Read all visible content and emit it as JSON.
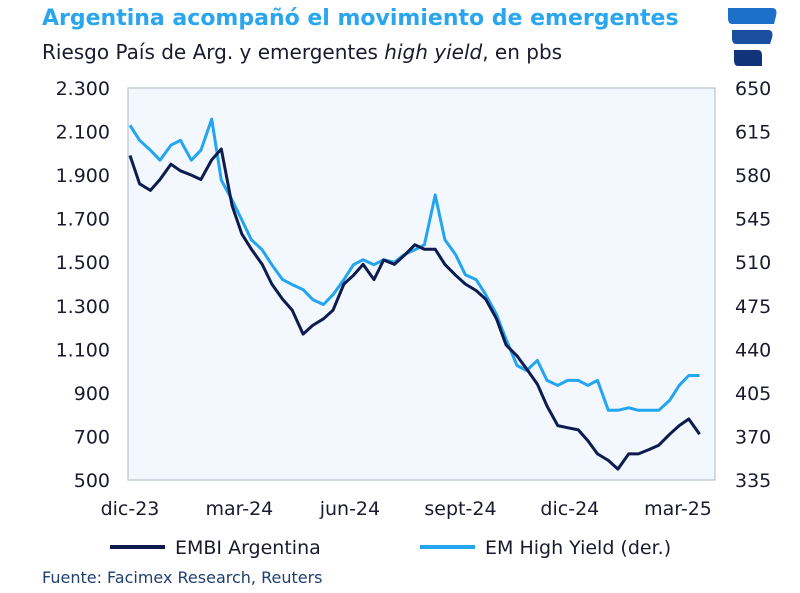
{
  "title": "Argentina acompañó el movimiento de emergentes",
  "subtitle_prefix": "Riesgo País de Arg. y emergentes ",
  "subtitle_italic": "high yield",
  "subtitle_suffix": ", en pbs",
  "source": "Fuente: Facimex Research, Reuters",
  "colors": {
    "title": "#2aa6ef",
    "embi": "#0d1b4f",
    "hy": "#23a5f0",
    "plot_bg": "#f2f8fe"
  },
  "chart_data": {
    "type": "line",
    "xlabel": "",
    "ylabel": "",
    "x_ticks": [
      {
        "label": "dic-23",
        "date": "2023-12-01"
      },
      {
        "label": "mar-24",
        "date": "2024-03-01"
      },
      {
        "label": "jun-24",
        "date": "2024-06-01"
      },
      {
        "label": "sept-24",
        "date": "2024-09-01"
      },
      {
        "label": "dic-24",
        "date": "2024-12-01"
      },
      {
        "label": "mar-25",
        "date": "2025-03-01"
      }
    ],
    "y_left": {
      "range": [
        500,
        2300
      ],
      "ticks": [
        "2.300",
        "2.100",
        "1.900",
        "1.700",
        "1.500",
        "1.300",
        "1.100",
        "900",
        "700",
        "500"
      ]
    },
    "y_right": {
      "range": [
        335,
        650
      ],
      "ticks": [
        "650",
        "615",
        "580",
        "545",
        "510",
        "475",
        "440",
        "405",
        "370",
        "335"
      ]
    },
    "grid": false,
    "legend_placement": "bottom",
    "x": [
      "2023-12-01",
      "2023-12-09",
      "2023-12-18",
      "2023-12-26",
      "2024-01-04",
      "2024-01-12",
      "2024-01-21",
      "2024-01-29",
      "2024-02-07",
      "2024-02-15",
      "2024-02-24",
      "2024-03-03",
      "2024-03-11",
      "2024-03-20",
      "2024-03-28",
      "2024-04-06",
      "2024-04-14",
      "2024-04-23",
      "2024-05-01",
      "2024-05-10",
      "2024-05-18",
      "2024-05-27",
      "2024-06-04",
      "2024-06-12",
      "2024-06-21",
      "2024-06-29",
      "2024-07-08",
      "2024-07-16",
      "2024-07-25",
      "2024-08-02",
      "2024-08-11",
      "2024-08-19",
      "2024-08-28",
      "2024-09-05",
      "2024-09-14",
      "2024-09-22",
      "2024-10-01",
      "2024-10-09",
      "2024-10-18",
      "2024-10-26",
      "2024-11-04",
      "2024-11-12",
      "2024-11-21",
      "2024-11-29",
      "2024-12-08",
      "2024-12-16",
      "2024-12-24",
      "2025-01-02",
      "2025-01-10",
      "2025-01-19",
      "2025-01-27",
      "2025-02-05",
      "2025-02-13",
      "2025-02-22",
      "2025-03-02",
      "2025-03-10",
      "2025-03-19"
    ],
    "series": [
      {
        "name": "EMBI Argentina",
        "axis": "left",
        "color": "#0d1b4f",
        "values": [
          1990,
          1860,
          1830,
          1880,
          1950,
          1920,
          1900,
          1880,
          1970,
          2020,
          1760,
          1630,
          1560,
          1490,
          1400,
          1330,
          1280,
          1170,
          1210,
          1240,
          1280,
          1400,
          1440,
          1490,
          1420,
          1510,
          1490,
          1530,
          1580,
          1560,
          1560,
          1490,
          1440,
          1400,
          1370,
          1330,
          1240,
          1120,
          1070,
          1010,
          940,
          840,
          750,
          740,
          730,
          680,
          620,
          590,
          550,
          620,
          620,
          640,
          660,
          710,
          750,
          780,
          710
        ]
      },
      {
        "name": "EM High Yield (der.)",
        "axis": "right",
        "color": "#23a5f0",
        "values": [
          620,
          608,
          600,
          592,
          604,
          608,
          592,
          600,
          625,
          576,
          560,
          544,
          528,
          520,
          508,
          496,
          492,
          488,
          480,
          476,
          484,
          496,
          508,
          512,
          508,
          512,
          510,
          516,
          520,
          524,
          564,
          528,
          516,
          500,
          496,
          484,
          468,
          448,
          427,
          423,
          431,
          415,
          411,
          415,
          415,
          411,
          415,
          391,
          391,
          393,
          391,
          391,
          391,
          399,
          411,
          419,
          419
        ]
      }
    ]
  }
}
